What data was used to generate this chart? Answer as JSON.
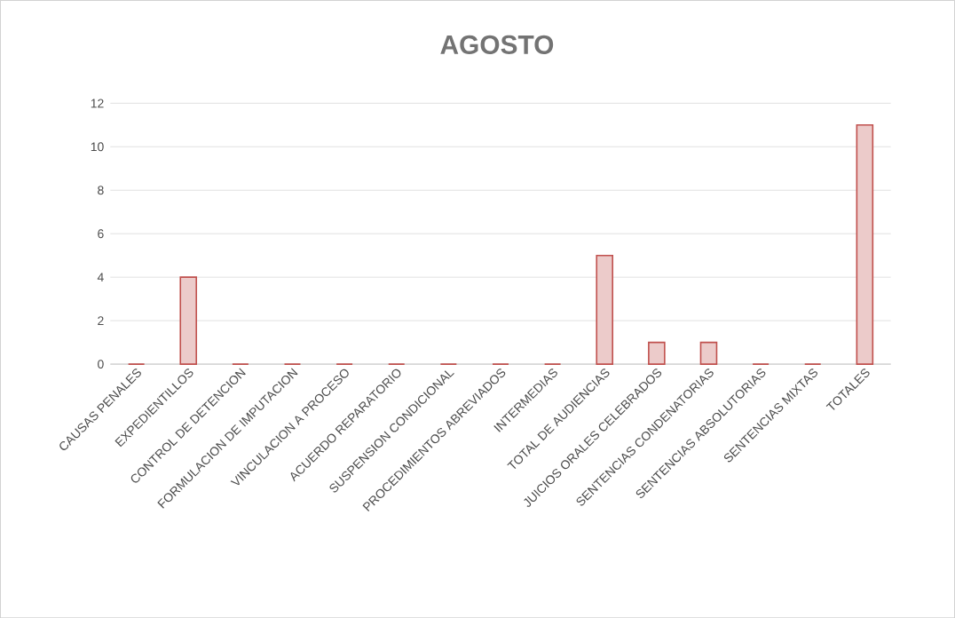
{
  "chart_data": {
    "type": "bar",
    "title": "AGOSTO",
    "categories": [
      "CAUSAS PENALES",
      "EXPEDIENTILLOS",
      "CONTROL DE DETENCION",
      "FORMULACION DE IMPUTACION",
      "VINCULACION A PROCESO",
      "ACUERDO REPARATORIO",
      "SUSPENSION CONDICIONAL",
      "PROCEDIMIENTOS ABREVIADOS",
      "INTERMEDIAS",
      "TOTAL DE AUDIENCIAS",
      "JUICIOS ORALES CELEBRADOS",
      "SENTENCIAS CONDENATORIAS",
      "SENTENCIAS ABSOLUTORIAS",
      "SENTENCIAS MIXTAS",
      "TOTALES"
    ],
    "values": [
      0,
      4,
      0,
      0,
      0,
      0,
      0,
      0,
      0,
      5,
      1,
      1,
      0,
      0,
      11
    ],
    "color": "#c0504d",
    "ylim": [
      0,
      12
    ],
    "yticks": [
      0,
      2,
      4,
      6,
      8,
      10,
      12
    ],
    "grid": "y"
  }
}
